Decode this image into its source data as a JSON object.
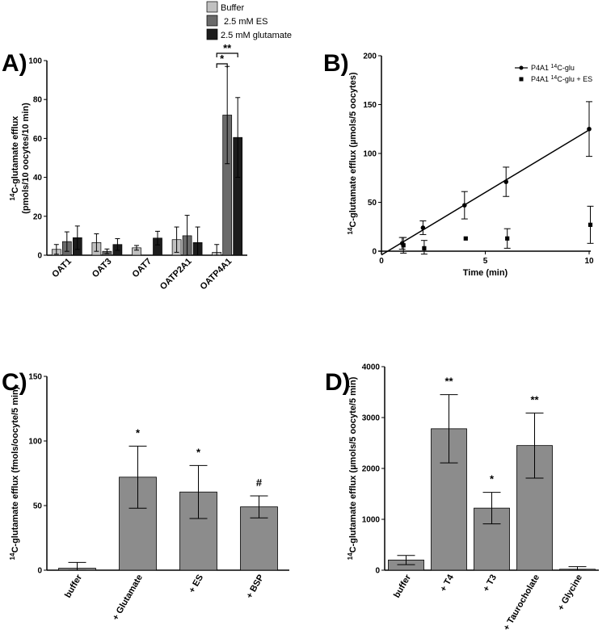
{
  "panels": {
    "A": {
      "letter": "A)"
    },
    "B": {
      "letter": "B)"
    },
    "C": {
      "letter": "C)"
    },
    "D": {
      "letter": "D)"
    }
  },
  "chart_data": [
    {
      "panel": "A",
      "type": "bar",
      "ylabel_line1": "C-glutamate efflux",
      "ylabel_sup": "14",
      "ylabel_line2": "(pmols/10 oocytes/10 min)",
      "ylim": [
        0,
        100
      ],
      "yticks": [
        "0",
        "20",
        "40",
        "60",
        "80",
        "100"
      ],
      "categories": [
        "OAT1",
        "OAT3",
        "OAT7",
        "OATP2A1",
        "OATP4A1"
      ],
      "legend_position": "top",
      "series": [
        {
          "name": "Buffer",
          "color": "#c0c0c0",
          "values": [
            3,
            6.5,
            3.8,
            8,
            1.5
          ],
          "errors": [
            2.5,
            4.5,
            1.2,
            6.5,
            4
          ]
        },
        {
          "name": "2.5 mM ES",
          "color": "#6a6a6a",
          "values": [
            7,
            2,
            0,
            10,
            72
          ],
          "errors": [
            5,
            1.2,
            0,
            10.5,
            25
          ]
        },
        {
          "name": "2.5 mM glutamate",
          "color": "#1c1c1c",
          "values": [
            9,
            5.5,
            8.8,
            6.5,
            60.5
          ],
          "errors": [
            6,
            3,
            3.5,
            8,
            20.5
          ]
        }
      ],
      "significance": [
        {
          "label": "*",
          "from": "Buffer",
          "to": "2.5 mM ES",
          "category": "OATP4A1"
        },
        {
          "label": "**",
          "from": "Buffer",
          "to": "2.5 mM glutamate",
          "category": "OATP4A1"
        }
      ]
    },
    {
      "panel": "B",
      "type": "scatter",
      "xlabel": "Time (min)",
      "ylabel_line1": "C-glutamate efflux (µmols/5 oocytes)",
      "ylabel_sup": "14",
      "xlim": [
        0,
        10
      ],
      "ylim": [
        0,
        200
      ],
      "xticks": [
        "0",
        "5",
        "10"
      ],
      "yticks": [
        "0",
        "50",
        "100",
        "150",
        "200"
      ],
      "legend_position": "top-right",
      "series": [
        {
          "name_prefix": "P4A1 ",
          "name_sup": "14",
          "name_suffix": "C-glu",
          "marker": "circle",
          "fit": "linear",
          "x": [
            1,
            2,
            4,
            6,
            10
          ],
          "y": [
            8,
            24,
            47,
            71,
            125
          ],
          "errors": [
            6,
            7,
            14,
            15,
            28
          ]
        },
        {
          "name_prefix": "P4A1 ",
          "name_sup": "14",
          "name_suffix": "C-glu + ES",
          "marker": "square",
          "x": [
            1,
            2,
            4,
            6,
            10
          ],
          "y": [
            6,
            3,
            13,
            13,
            27
          ],
          "errors": [
            8,
            8,
            0,
            10,
            19
          ]
        }
      ]
    },
    {
      "panel": "C",
      "type": "bar",
      "ylabel_line1": "C-glutamate efflux (fmols/oocyte/5 min)",
      "ylabel_sup": "14",
      "ylim": [
        0,
        150
      ],
      "yticks": [
        "0",
        "50",
        "100",
        "150"
      ],
      "categories": [
        "buffer",
        "+ Glutamate",
        "+ ES",
        "+ BSP"
      ],
      "bar_color": "#8c8c8c",
      "values": [
        1.5,
        72,
        60.5,
        49
      ],
      "errors": [
        4.5,
        24,
        20.5,
        8.5
      ],
      "significance": [
        "",
        "*",
        "*",
        "#"
      ]
    },
    {
      "panel": "D",
      "type": "bar",
      "ylabel_line1": "C-glutamate efflux (µmols/5 oocyte/5 min)",
      "ylabel_sup": "14",
      "ylim": [
        0,
        4000
      ],
      "yticks": [
        "0",
        "1000",
        "2000",
        "3000",
        "4000"
      ],
      "categories": [
        "buffer",
        "+ T4",
        "+ T3",
        "+ Taurocholate",
        "+ Glycine"
      ],
      "bar_color": "#8c8c8c",
      "values": [
        200,
        2780,
        1220,
        2450,
        10
      ],
      "errors": [
        90,
        670,
        310,
        640,
        60
      ],
      "significance": [
        "",
        "**",
        "*",
        "**",
        ""
      ]
    }
  ]
}
